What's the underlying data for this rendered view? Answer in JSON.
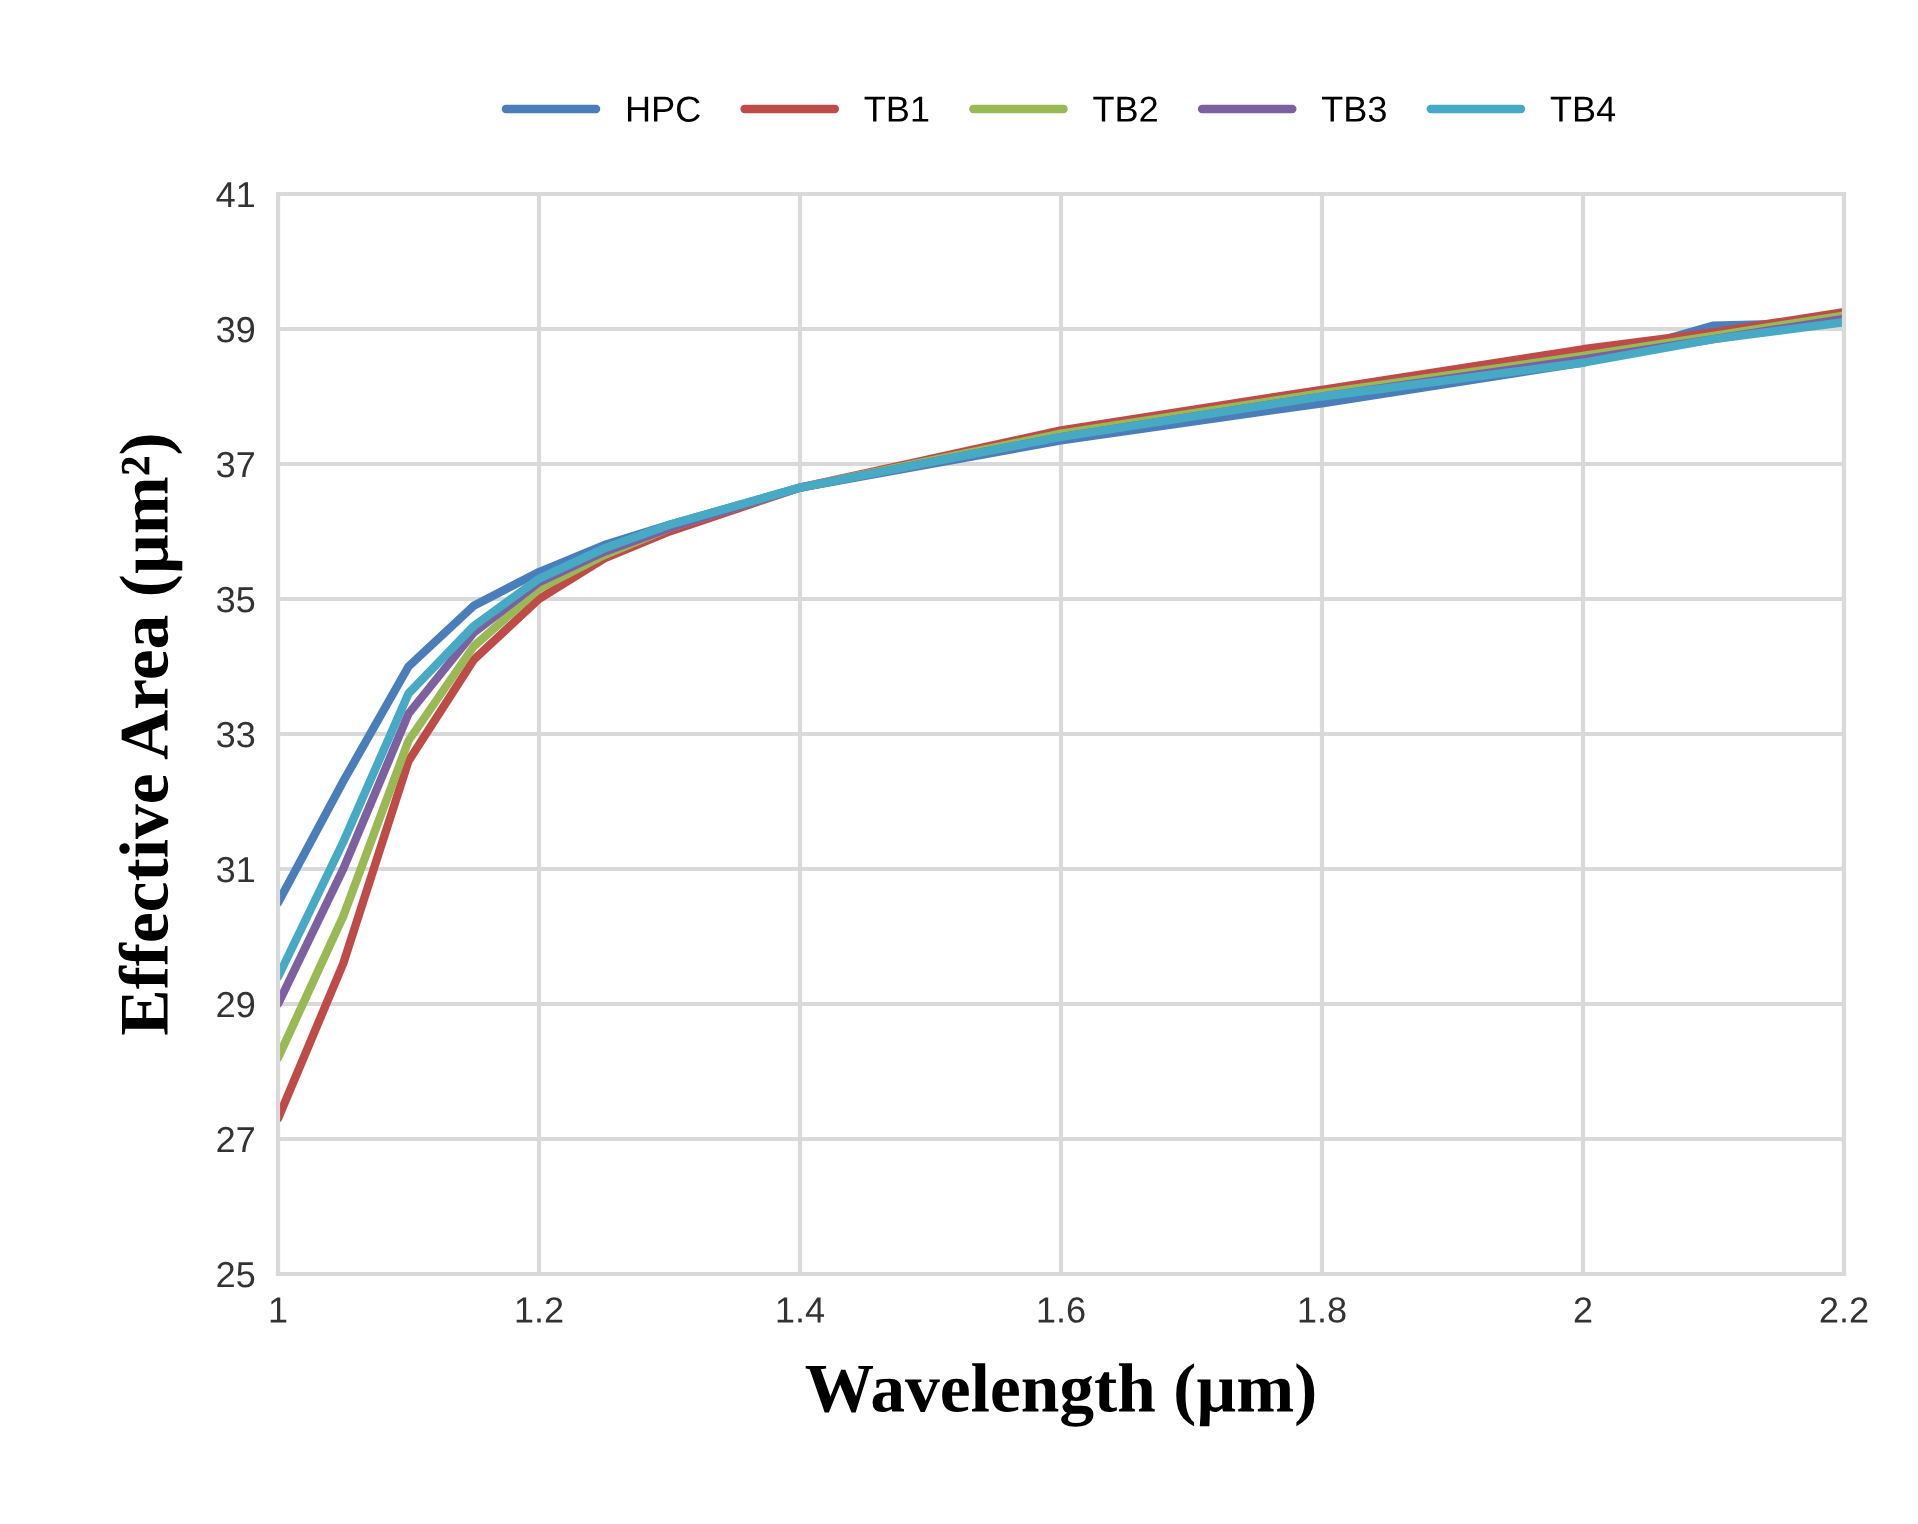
{
  "chart_data": {
    "type": "line",
    "xlabel": "Wavelength (µm)",
    "ylabel": "Effective Area (µm²)",
    "x": [
      1,
      1.05,
      1.1,
      1.15,
      1.2,
      1.25,
      1.3,
      1.4,
      1.6,
      1.8,
      2.0,
      2.1,
      2.2
    ],
    "series": [
      {
        "name": "HPC",
        "color": "#4a7ebb",
        "values": [
          30.5,
          32.3,
          34.0,
          34.9,
          35.4,
          35.8,
          36.1,
          36.65,
          37.35,
          37.9,
          38.5,
          39.05,
          39.1
        ]
      },
      {
        "name": "TB1",
        "color": "#be4b48",
        "values": [
          27.3,
          29.6,
          32.6,
          34.1,
          35.0,
          35.6,
          36.0,
          36.65,
          37.5,
          38.1,
          38.7,
          38.95,
          39.25
        ]
      },
      {
        "name": "TB2",
        "color": "#98b954",
        "values": [
          28.2,
          30.3,
          32.9,
          34.3,
          35.15,
          35.65,
          36.05,
          36.65,
          37.45,
          38.05,
          38.6,
          38.9,
          39.2
        ]
      },
      {
        "name": "TB3",
        "color": "#7d60a0",
        "values": [
          29.0,
          31.0,
          33.3,
          34.5,
          35.25,
          35.7,
          36.05,
          36.65,
          37.4,
          38.0,
          38.55,
          38.85,
          39.15
        ]
      },
      {
        "name": "TB4",
        "color": "#46aac5",
        "values": [
          29.4,
          31.4,
          33.6,
          34.6,
          35.3,
          35.75,
          36.1,
          36.65,
          37.4,
          38.0,
          38.5,
          38.85,
          39.1
        ]
      }
    ],
    "xlim": [
      1,
      2.2
    ],
    "xticks": [
      1,
      1.2,
      1.4,
      1.6,
      1.8,
      2,
      2.2
    ],
    "ylim": [
      25,
      41
    ],
    "yticks": [
      25,
      27,
      29,
      31,
      33,
      35,
      37,
      39,
      41
    ],
    "grid": true,
    "legend": "top",
    "marker": "none",
    "line_style": "solid"
  }
}
